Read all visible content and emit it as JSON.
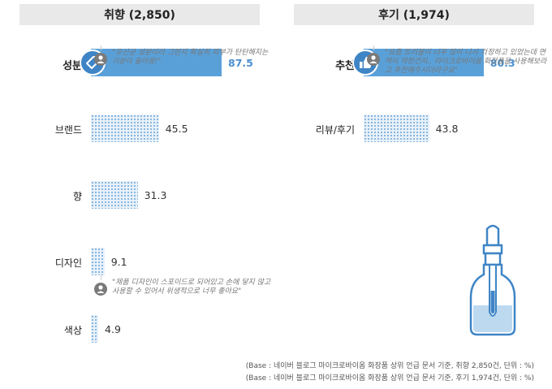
{
  "chart_data": [
    {
      "type": "bar",
      "title": "취향 (2,850)",
      "categories": [
        "성분",
        "브랜드",
        "향",
        "디자인",
        "색상"
      ],
      "values": [
        87.5,
        45.5,
        31.3,
        9.1,
        4.9
      ],
      "value_labels": [
        "87.5",
        "45.5",
        "31.3",
        "9.1",
        "4.9"
      ],
      "xlim": [
        0,
        100
      ],
      "highlight": "성분",
      "quotes": [
        {
          "after": "성분",
          "lines": [
            "\"유산균 성분이라 그런지 확실히 피부가",
            "탄탄해지는 기분이 들어용!\""
          ]
        },
        {
          "after": "디자인",
          "lines": [
            "\"제품 디자인이 스포이드로 되어있고 손에",
            "닿지 않고 사용할 수 있어서 위생적으로 너무",
            "좋아요\""
          ]
        }
      ]
    },
    {
      "type": "bar",
      "title": "후기 (1,974)",
      "categories": [
        "추천",
        "리뷰/후기"
      ],
      "values": [
        80.3,
        43.8
      ],
      "value_labels": [
        "80.3",
        "43.8"
      ],
      "xlim": [
        0,
        100
      ],
      "highlight": "추천",
      "quotes": [
        {
          "after": "추천",
          "lines": [
            "\"요즘 트러블이 너무 많이 나서 걱정하고",
            "있었는데 면역이 약한건지.. 마이크로바이옴",
            "화장품을 사용해보라고 추천해주시더라구요\""
          ]
        }
      ]
    }
  ],
  "notes": [
    "(Base : 네이버 블로그 마이크로바이옴 화장품 상위 언급 문서 기준, 취향 2,850건, 단위 : %)",
    "(Base : 네이버 블로그 마이크로바이옴 화장품 상위 언급 문서 기준, 후기 1,974건, 단위 : %)"
  ],
  "colors": {
    "accent": "#5aa0d8",
    "header_bg": "#e9e9e9"
  },
  "icons": {
    "성분": "tag-icon",
    "추천": "thumbs-up-icon",
    "quote": "user-icon",
    "illustration": "dropper-bottle-icon"
  }
}
